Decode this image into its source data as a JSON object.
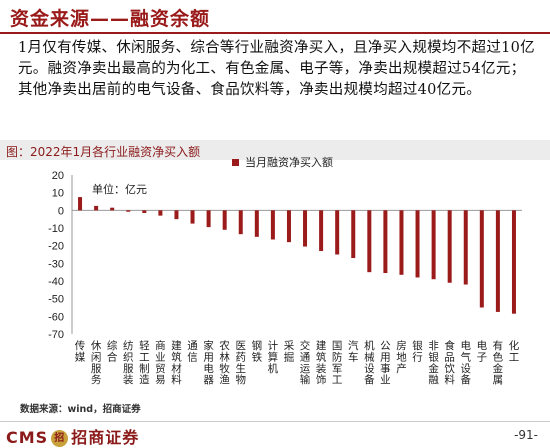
{
  "slide": {
    "title": "资金来源——融资余额",
    "paragraph": "1月仅有传媒、休闲服务、综合等行业融资净买入，且净买入规模均不超过10亿元。融资净卖出最高的为化工、有色金属、电子等，净卖出规模超过54亿元；其他净卖出居前的电气设备、食品饮料等，净卖出规模均超过40亿元。",
    "figure_title": "图：2022年1月各行业融资净买入额",
    "source": "数据来源：wind，招商证券",
    "logo_text": "CMS",
    "logo_brand": "招商证券",
    "logo_badge": "招",
    "page_number": "-91-"
  },
  "chart_data": {
    "type": "bar",
    "legend": "当月融资净买入额",
    "unit_label": "单位：亿元",
    "ylim": [
      -70,
      20
    ],
    "yticks": [
      20,
      10,
      0,
      -10,
      -20,
      -30,
      -40,
      -50,
      -60,
      -70
    ],
    "bar_color": "#9b1b1b",
    "categories": [
      "传媒",
      "休闲服务",
      "综合",
      "纺织服装",
      "轻工制造",
      "商业贸易",
      "建筑材料",
      "通信",
      "家用电器",
      "农林牧渔",
      "医药生物",
      "钢铁",
      "计算机",
      "采掘",
      "交通运输",
      "建筑装饰",
      "国防军工",
      "汽车",
      "机械设备",
      "公用事业",
      "房地产",
      "银行",
      "非银金融",
      "食品饮料",
      "电气设备",
      "电子",
      "有色金属",
      "化工"
    ],
    "values": [
      7.5,
      2.5,
      1.5,
      -0.8,
      -1.5,
      -3,
      -5,
      -7.5,
      -9.5,
      -11,
      -13.5,
      -15,
      -16.5,
      -18,
      -20.5,
      -23,
      -25,
      -27,
      -35,
      -35.5,
      -36.5,
      -38,
      -39,
      -41,
      -42,
      -55,
      -57.5,
      -58.5
    ]
  }
}
